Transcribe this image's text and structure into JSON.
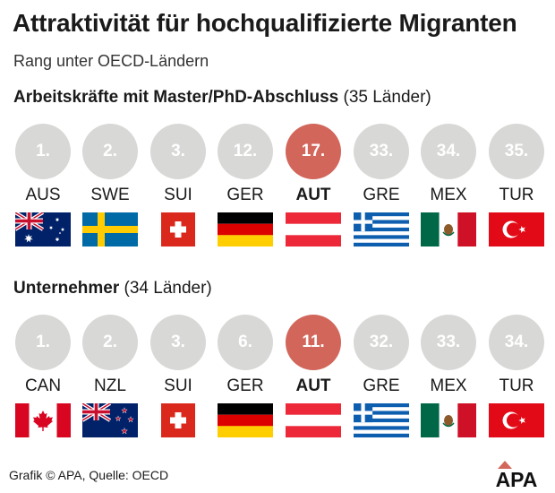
{
  "title": "Attraktivität für hochqualifizierte Migranten",
  "subtitle": "Rang unter OECD-Ländern",
  "footer": "Grafik © APA, Quelle: OECD",
  "logo_text": "APA",
  "colors": {
    "circle_default": "#d8d8d6",
    "circle_highlight": "#d2665b",
    "rank_text": "#ffffff"
  },
  "chart_data": [
    {
      "type": "table",
      "title": "Arbeitskräfte mit Master/PhD-Abschluss",
      "title_suffix": "(35 Länder)",
      "categories": [
        "AUS",
        "SWE",
        "SUI",
        "GER",
        "AUT",
        "GRE",
        "MEX",
        "TUR"
      ],
      "rank_labels": [
        "1.",
        "2.",
        "3.",
        "12.",
        "17.",
        "33.",
        "34.",
        "35."
      ],
      "values": [
        1,
        2,
        3,
        12,
        17,
        33,
        34,
        35
      ],
      "highlight": "AUT",
      "flag_icons": [
        "australia-flag-icon",
        "sweden-flag-icon",
        "switzerland-flag-icon",
        "germany-flag-icon",
        "austria-flag-icon",
        "greece-flag-icon",
        "mexico-flag-icon",
        "turkey-flag-icon"
      ]
    },
    {
      "type": "table",
      "title": "Unternehmer",
      "title_suffix": "(34 Länder)",
      "categories": [
        "CAN",
        "NZL",
        "SUI",
        "GER",
        "AUT",
        "GRE",
        "MEX",
        "TUR"
      ],
      "rank_labels": [
        "1.",
        "2.",
        "3.",
        "6.",
        "11.",
        "32.",
        "33.",
        "34."
      ],
      "values": [
        1,
        2,
        3,
        6,
        11,
        32,
        33,
        34
      ],
      "highlight": "AUT",
      "flag_icons": [
        "canada-flag-icon",
        "new-zealand-flag-icon",
        "switzerland-flag-icon",
        "germany-flag-icon",
        "austria-flag-icon",
        "greece-flag-icon",
        "mexico-flag-icon",
        "turkey-flag-icon"
      ]
    }
  ]
}
